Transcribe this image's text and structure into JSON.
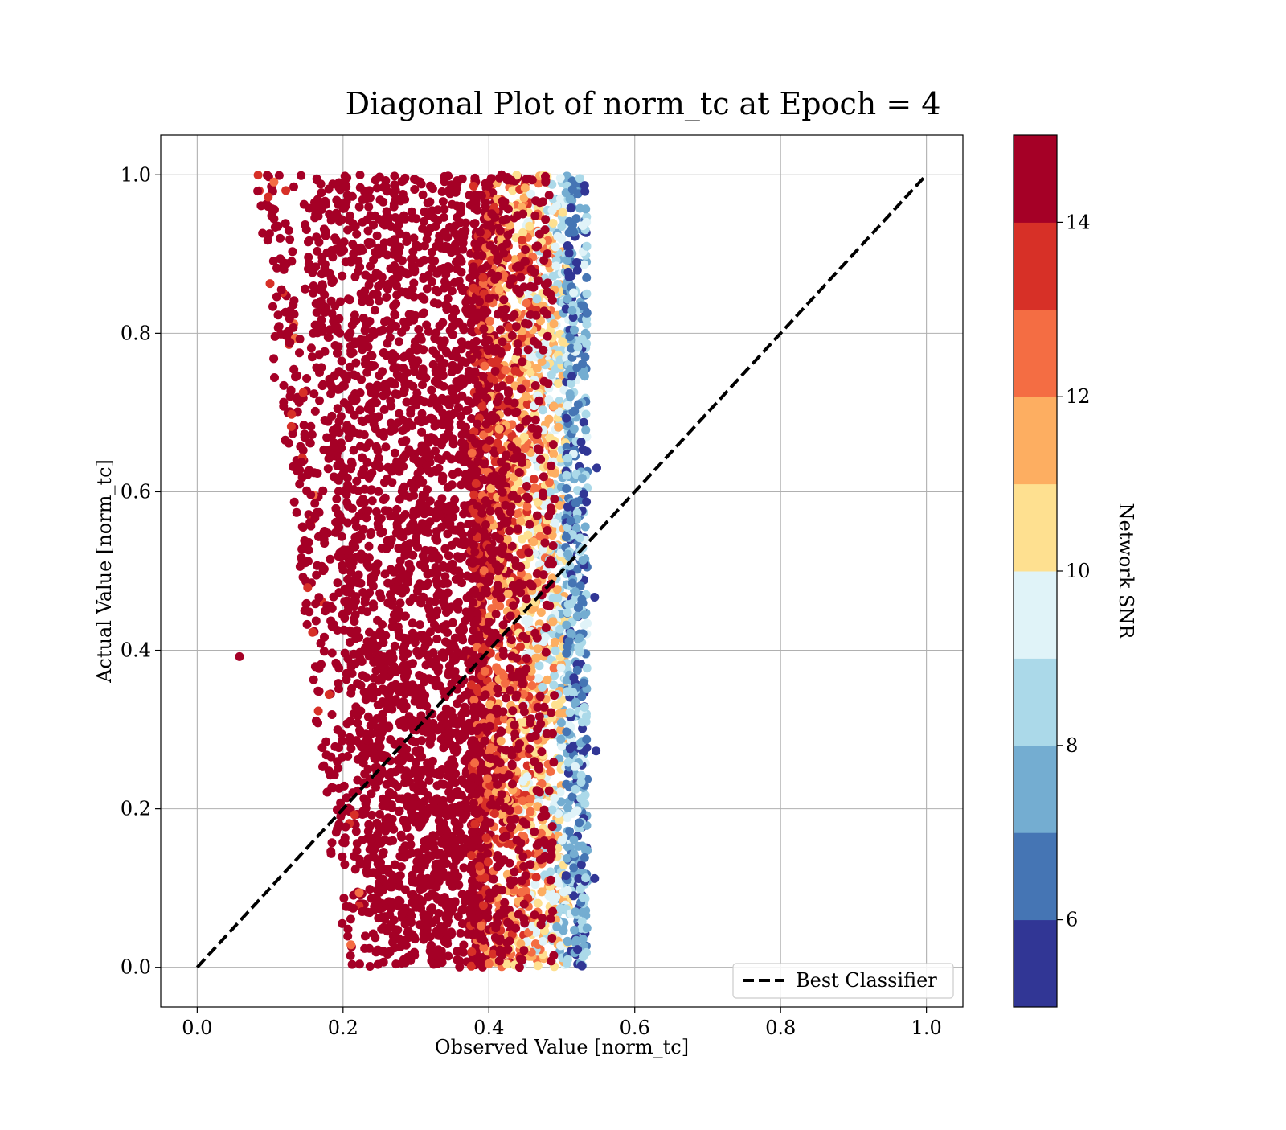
{
  "chart_data": {
    "type": "scatter",
    "title": "Diagonal Plot of norm_tc at Epoch = 4",
    "xlabel": "Observed Value [norm_tc]",
    "ylabel": "Actual Value [norm_tc]",
    "xlim": [
      -0.05,
      1.05
    ],
    "ylim": [
      -0.05,
      1.05
    ],
    "xticks": [
      "0.0",
      "0.2",
      "0.4",
      "0.6",
      "0.8",
      "1.0"
    ],
    "yticks": [
      "0.0",
      "0.2",
      "0.4",
      "0.6",
      "0.8",
      "1.0"
    ],
    "grid": true,
    "reference_line": {
      "name": "Best Classifier",
      "x": [
        0,
        1
      ],
      "y": [
        0,
        1
      ],
      "style": "dashed",
      "color": "#000000"
    },
    "legend": {
      "placement": "lower-right",
      "entries": [
        "Best Classifier"
      ]
    },
    "colorbar": {
      "label": "Network SNR",
      "range": [
        5,
        15
      ],
      "ticks": [
        "6",
        "8",
        "10",
        "12",
        "14"
      ],
      "colors": [
        "#313695",
        "#4575b4",
        "#74add1",
        "#abd9e9",
        "#e0f3f8",
        "#fee090",
        "#fdae61",
        "#f46d43",
        "#d73027",
        "#a50026"
      ]
    },
    "point_cloud": {
      "description_ranges": [
        {
          "snr": 15,
          "x_range": [
            0.12,
            0.4
          ],
          "y_range": [
            0.0,
            1.0
          ],
          "density": "dense core"
        },
        {
          "snr": "12-14",
          "x_range": [
            0.38,
            0.48
          ],
          "y_range": [
            0.0,
            1.0
          ]
        },
        {
          "snr": "10-11",
          "x_range": [
            0.46,
            0.51
          ],
          "y_range": [
            0.0,
            1.0
          ]
        },
        {
          "snr": "6-9",
          "x_range": [
            0.5,
            0.54
          ],
          "y_range": [
            0.0,
            1.0
          ]
        }
      ],
      "outliers": [
        {
          "x": 0.058,
          "y": 0.392,
          "snr": 15
        },
        {
          "x": 0.548,
          "y": 0.63,
          "snr": 5
        },
        {
          "x": 0.545,
          "y": 0.112,
          "snr": 5
        },
        {
          "x": 0.547,
          "y": 0.273,
          "snr": 5
        },
        {
          "x": 0.545,
          "y": 0.467,
          "snr": 5
        },
        {
          "x": 0.109,
          "y": 0.846,
          "snr": 15
        },
        {
          "x": 0.105,
          "y": 0.768,
          "snr": 15
        },
        {
          "x": 0.106,
          "y": 0.744,
          "snr": 15
        }
      ]
    }
  }
}
